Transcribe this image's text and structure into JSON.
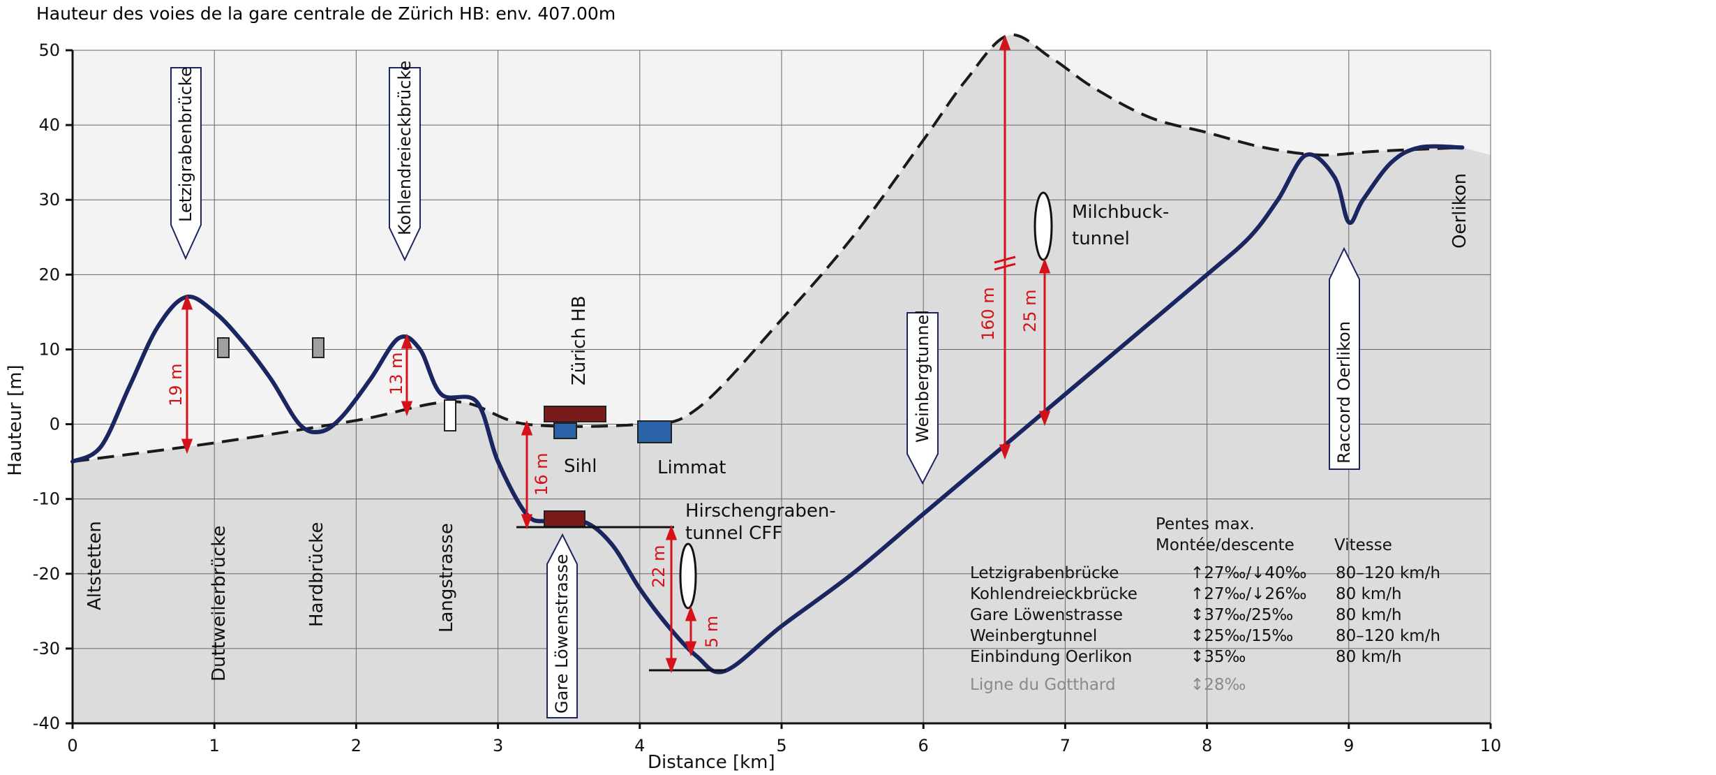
{
  "header": {
    "title": "Hauteur des voies de la gare centrale de Zürich HB: env. 407.00m"
  },
  "axes": {
    "xlabel": "Distance [km]",
    "ylabel": "Hauteur [m]",
    "xticks": [
      "0",
      "1",
      "2",
      "3",
      "4",
      "5",
      "6",
      "7",
      "8",
      "9",
      "10"
    ],
    "yticks": [
      "50",
      "40",
      "30",
      "20",
      "10",
      "0",
      "-10",
      "-20",
      "-30",
      "-40"
    ],
    "xlim": [
      0,
      10
    ],
    "ylim": [
      -40,
      50
    ]
  },
  "labels": {
    "letzigraben": "Letzigrabenbrücke",
    "kohlendreieck": "Kohlendreieckbrücke",
    "altstetten": "Altstetten",
    "duttweiler": "Duttweilerbrücke",
    "hardbruecke": "Hardbrücke",
    "langstrasse": "Langstrasse",
    "zurich_hb": "Zürich HB",
    "sihl": "Sihl",
    "limmat": "Limmat",
    "gare_loewenstrasse": "Gare Löwenstrasse",
    "hirschengraben_1": "Hirschengraben-",
    "hirschengraben_2": "tunnel CFF",
    "weinbergtunnel": "Weinbergtunnel",
    "milchbuck_1": "Milchbuck-",
    "milchbuck_2": "tunnel",
    "raccord_oerlikon": "Raccord Oerlikon",
    "oerlikon": "Oerlikon"
  },
  "measures": {
    "m19": "19 m",
    "m13": "13 m",
    "m16": "16 m",
    "m22": "22 m",
    "m5": "5 m",
    "m160": "160 m",
    "m25": "25 m"
  },
  "table": {
    "header_gradient_1": "Pentes max.",
    "header_gradient_2": "Montée/descente",
    "header_speed": "Vitesse",
    "rows": [
      {
        "name": "Letzigrabenbrücke",
        "gradient": "↑27‰/↓40‰",
        "speed": "80–120 km/h"
      },
      {
        "name": "Kohlendreieckbrücke",
        "gradient": "↑27‰/↓26‰",
        "speed": "80 km/h"
      },
      {
        "name": "Gare Löwenstrasse",
        "gradient": "↕37‰/25‰",
        "speed": "80 km/h"
      },
      {
        "name": "Weinbergtunnel",
        "gradient": "↕25‰/15‰",
        "speed": "80–120 km/h"
      },
      {
        "name": "Einbindung Oerlikon",
        "gradient": "↕35‰",
        "speed": "80 km/h"
      }
    ],
    "reference": {
      "name": "Ligne du Gotthard",
      "gradient": "↕28‰"
    }
  },
  "colors": {
    "track": "#1b2560",
    "measure": "#d5121a",
    "ground": "#dcdcdc",
    "station": "#7a1a1a",
    "river": "#2a62a8",
    "pillar": "#a0a0a0"
  },
  "chart_data": {
    "type": "line",
    "series": [
      {
        "x": [
          0,
          0.2,
          0.4,
          0.6,
          0.8,
          1.0,
          1.2,
          1.4,
          1.6,
          1.75,
          1.9,
          2.1,
          2.3,
          2.45,
          2.6,
          2.85,
          3.0,
          3.2,
          3.35,
          3.6,
          3.8,
          4.0,
          4.2,
          4.4,
          4.6,
          5.0,
          5.5,
          6.0,
          6.5,
          7.0,
          7.5,
          8.0,
          8.3,
          8.5,
          8.7,
          8.9,
          9.0,
          9.1,
          9.3,
          9.5,
          9.8
        ],
        "y": [
          -5,
          -3,
          5,
          13,
          17,
          15,
          11,
          6,
          0,
          -1,
          1,
          6,
          11.5,
          10,
          4,
          3,
          -5,
          -12,
          -13,
          -13,
          -16,
          -22,
          -27,
          -31,
          -33,
          -27,
          -20,
          -12,
          -4,
          4,
          12,
          20,
          25,
          30,
          36,
          33,
          27,
          30,
          35,
          37,
          37
        ]
      },
      {
        "x": [
          0,
          1,
          2,
          2.7,
          3.2,
          4.0,
          4.4,
          5.0,
          5.5,
          6.0,
          6.3,
          6.6,
          6.9,
          7.2,
          7.6,
          8.0,
          8.4,
          8.8,
          9.2,
          9.8
        ],
        "y": [
          -5,
          -2.5,
          0.5,
          3,
          0,
          0,
          2,
          14,
          25,
          38,
          46,
          52,
          49,
          45,
          41,
          39,
          37,
          36,
          36.5,
          37
        ]
      }
    ]
  }
}
